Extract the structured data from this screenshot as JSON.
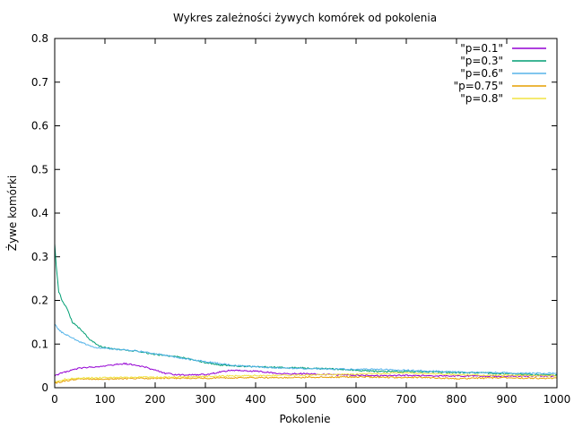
{
  "chart_data": {
    "type": "line",
    "title": "Wykres zależności żywych komórek od pokolenia",
    "xlabel": "Pokolenie",
    "ylabel": "Żywe komórki",
    "xlim": [
      0,
      1000
    ],
    "ylim": [
      0,
      0.8
    ],
    "xticks": [
      "0",
      "100",
      "200",
      "300",
      "400",
      "500",
      "600",
      "700",
      "800",
      "900",
      "1000"
    ],
    "yticks": [
      "0",
      "0.1",
      "0.2",
      "0.3",
      "0.4",
      "0.5",
      "0.6",
      "0.7",
      "0.8"
    ],
    "grid": false,
    "legend_position": "top-right",
    "series": [
      {
        "name": "\"p=0.1\"",
        "color": "#9400d3",
        "x": [
          0,
          5,
          20,
          50,
          80,
          100,
          120,
          140,
          160,
          180,
          200,
          220,
          240,
          260,
          300,
          350,
          400,
          450,
          500,
          550,
          600,
          650,
          700,
          750,
          800,
          850,
          900,
          950,
          1000
        ],
        "y": [
          0.026,
          0.03,
          0.036,
          0.045,
          0.048,
          0.05,
          0.053,
          0.055,
          0.052,
          0.047,
          0.04,
          0.033,
          0.03,
          0.029,
          0.03,
          0.04,
          0.038,
          0.032,
          0.032,
          0.03,
          0.028,
          0.028,
          0.028,
          0.027,
          0.027,
          0.027,
          0.026,
          0.027,
          0.027
        ]
      },
      {
        "name": "\"p=0.3\"",
        "color": "#009e73",
        "x": [
          0,
          3,
          8,
          15,
          25,
          35,
          45,
          55,
          70,
          90,
          110,
          130,
          150,
          170,
          190,
          210,
          230,
          250,
          270,
          300,
          330,
          360,
          400,
          450,
          500,
          550,
          600,
          650,
          700,
          750,
          800,
          850,
          900,
          950,
          1000
        ],
        "y": [
          0.33,
          0.28,
          0.22,
          0.2,
          0.18,
          0.15,
          0.14,
          0.13,
          0.11,
          0.095,
          0.09,
          0.087,
          0.085,
          0.083,
          0.078,
          0.075,
          0.072,
          0.07,
          0.065,
          0.058,
          0.052,
          0.05,
          0.048,
          0.046,
          0.045,
          0.043,
          0.04,
          0.037,
          0.037,
          0.036,
          0.035,
          0.034,
          0.032,
          0.03,
          0.029
        ]
      },
      {
        "name": "\"p=0.6\"",
        "color": "#56b4e9",
        "x": [
          0,
          10,
          25,
          50,
          80,
          100,
          130,
          160,
          200,
          250,
          300,
          350,
          400,
          450,
          500,
          550,
          600,
          650,
          700,
          750,
          800,
          850,
          900,
          950,
          1000
        ],
        "y": [
          0.145,
          0.13,
          0.12,
          0.105,
          0.092,
          0.09,
          0.087,
          0.085,
          0.078,
          0.068,
          0.06,
          0.052,
          0.048,
          0.045,
          0.044,
          0.043,
          0.042,
          0.042,
          0.04,
          0.038,
          0.036,
          0.035,
          0.034,
          0.033,
          0.033
        ]
      },
      {
        "name": "\"p=0.75\"",
        "color": "#e69f00",
        "x": [
          0,
          20,
          50,
          100,
          150,
          200,
          250,
          300,
          350,
          400,
          450,
          500,
          550,
          600,
          650,
          700,
          750,
          800,
          850,
          900,
          950,
          1000
        ],
        "y": [
          0.01,
          0.016,
          0.02,
          0.02,
          0.021,
          0.022,
          0.022,
          0.022,
          0.023,
          0.023,
          0.023,
          0.024,
          0.024,
          0.025,
          0.024,
          0.024,
          0.023,
          0.021,
          0.022,
          0.023,
          0.022,
          0.022
        ]
      },
      {
        "name": "\"p=0.8\"",
        "color": "#f0e442",
        "x": [
          0,
          20,
          50,
          100,
          150,
          200,
          250,
          300,
          350,
          400,
          450,
          500,
          550,
          600,
          650,
          700,
          750,
          800,
          850,
          900,
          950,
          1000
        ],
        "y": [
          0.012,
          0.02,
          0.022,
          0.023,
          0.024,
          0.024,
          0.025,
          0.026,
          0.027,
          0.028,
          0.028,
          0.029,
          0.03,
          0.031,
          0.033,
          0.034,
          0.032,
          0.03,
          0.029,
          0.029,
          0.028,
          0.028
        ]
      }
    ]
  }
}
